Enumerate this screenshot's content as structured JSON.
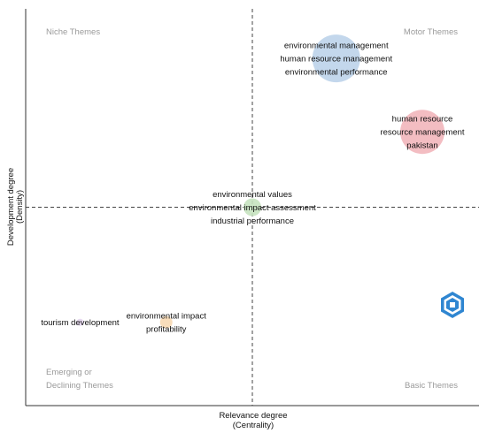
{
  "chart_data": {
    "type": "scatter",
    "xlabel": "Relevance degree",
    "xlabel_sub": "(Centrality)",
    "ylabel": "Development degree",
    "ylabel_sub": "(Density)",
    "xlim": [
      0,
      1
    ],
    "ylim": [
      0,
      1
    ],
    "divider_x": 0.5,
    "divider_y": 0.5,
    "grid": false,
    "quadrants": {
      "top_left": "Niche Themes",
      "top_right": "Motor Themes",
      "bottom_left_line1": "Emerging or",
      "bottom_left_line2": "Declining Themes",
      "bottom_right": "Basic Themes"
    },
    "clusters": [
      {
        "x": 0.685,
        "y": 0.875,
        "size": 27,
        "color": "#bcd3ea",
        "labels": [
          "environmental management",
          "human resource management",
          "environmental performance"
        ]
      },
      {
        "x": 0.875,
        "y": 0.69,
        "size": 25,
        "color": "#f2b6bb",
        "labels": [
          "human resource",
          "resource management",
          "pakistan"
        ]
      },
      {
        "x": 0.5,
        "y": 0.5,
        "size": 10,
        "color": "#c7e3c0",
        "labels": [
          "environmental values",
          "environmental impact assessment",
          "industrial performance"
        ]
      },
      {
        "x": 0.31,
        "y": 0.21,
        "size": 7,
        "color": "#f7d9b4",
        "labels": [
          "environmental impact",
          "profitability"
        ]
      },
      {
        "x": 0.12,
        "y": 0.21,
        "size": 4,
        "color": "#e4d6ee",
        "labels": [
          "tourism development"
        ]
      }
    ]
  }
}
